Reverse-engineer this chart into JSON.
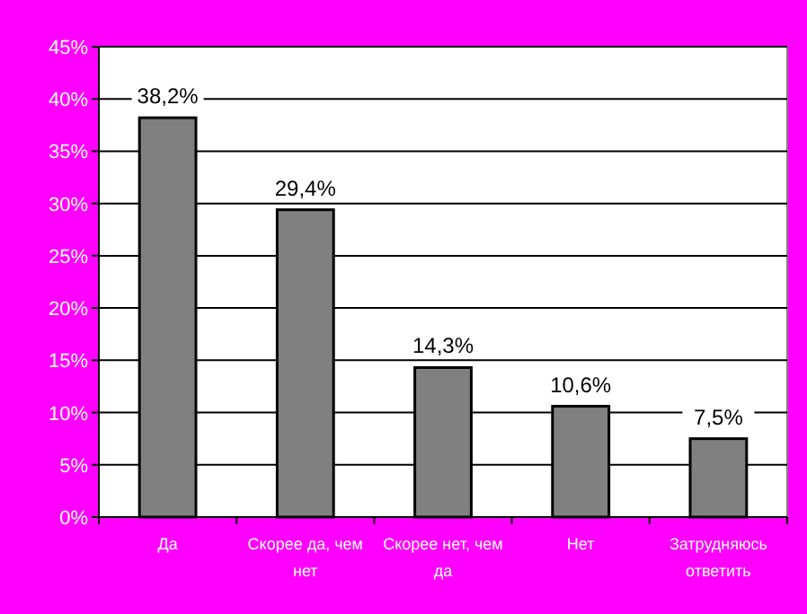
{
  "chart_data": {
    "type": "bar",
    "categories": [
      "Да",
      "Скорее да, чем нет",
      "Скорее нет, чем да",
      "Нет",
      "Затрудняюсь ответить"
    ],
    "values": [
      38.2,
      29.4,
      14.3,
      10.6,
      7.5
    ],
    "color": "#808080",
    "value_labels": [
      "38,2%",
      "29,4%",
      "14,3%",
      "10,6%",
      "7,5%"
    ],
    "ylim": [
      0,
      45
    ],
    "yticks": [
      {
        "value": 0,
        "label": "0%"
      },
      {
        "value": 5,
        "label": "5%"
      },
      {
        "value": 10,
        "label": "10%"
      },
      {
        "value": 15,
        "label": "15%"
      },
      {
        "value": 20,
        "label": "20%"
      },
      {
        "value": 25,
        "label": "25%"
      },
      {
        "value": 30,
        "label": "30%"
      },
      {
        "value": 35,
        "label": "35%"
      },
      {
        "value": 40,
        "label": "40%"
      },
      {
        "value": 45,
        "label": "45%"
      }
    ],
    "grid": "y"
  }
}
